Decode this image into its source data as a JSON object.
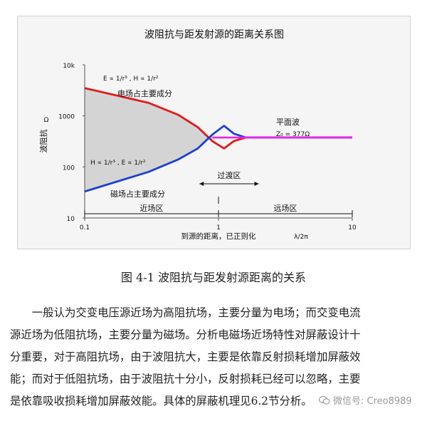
{
  "figure": {
    "title": "波阻抗与距发射源的距离关系图",
    "caption": "图  4-1  波阻抗与距发射源距离的关系"
  },
  "chart_data": {
    "type": "line",
    "title": "波阻抗与距发射源的距离关系图",
    "xlabel": "到源的距离，已正则化",
    "xlabel_unit": "λ/2π",
    "ylabel": "波阻抗",
    "ylabel_unit": "Ω",
    "xscale": "log",
    "yscale": "log",
    "xlim": [
      0.1,
      10
    ],
    "ylim": [
      10,
      10000
    ],
    "x_ticks": [
      "0.1",
      "1",
      "10"
    ],
    "y_ticks": [
      "10k",
      "1000",
      "100",
      "10"
    ],
    "series": [
      {
        "name": "电场占主要成分",
        "color": "#e41a1c",
        "x": [
          0.1,
          0.3,
          0.5,
          0.7,
          0.9,
          1.1,
          1.3,
          1.6,
          2,
          10
        ],
        "y": [
          3500,
          1800,
          1050,
          600,
          320,
          230,
          320,
          377,
          377,
          377
        ]
      },
      {
        "name": "磁场占主要成分",
        "color": "#1a3fd6",
        "x": [
          0.1,
          0.3,
          0.5,
          0.7,
          0.9,
          1.1,
          1.3,
          1.6,
          2,
          10
        ],
        "y": [
          33,
          80,
          140,
          230,
          430,
          640,
          450,
          377,
          377,
          377
        ]
      },
      {
        "name": "平面波",
        "color": "#ee22ee",
        "x": [
          0.9,
          10
        ],
        "y": [
          377,
          377
        ]
      }
    ],
    "annotations": {
      "upper_formula": "E ∝ 1/r³ ,  H ∝ 1/r²",
      "lower_formula": "H ∝ 1/r³ ,  E ∝ 1/r²",
      "upper_label": "电场占主要成分",
      "lower_label": "磁场占主要成分",
      "plane_wave": "平面波",
      "plane_wave_value": "Z₀ = 377Ω",
      "transition": "过渡区",
      "near_field": "近场区",
      "far_field": "远场区"
    }
  },
  "body": {
    "lines": [
      "　　一般认为交变电压源近场为高阻抗场，主要分量为电场；而交变电流",
      "源近场为低阻抗场，主要分量为磁场。分析电磁场近场特性对屏蔽设计十",
      "分重要，对于高阻抗场，由于波阻抗大，主要是依靠反射损耗增加屏蔽效",
      "能；而对于低阻抗场，由于波阻抗十分小，反射损耗已经可以忽略，主要",
      "是依靠吸收损耗增加屏蔽效能。具体的屏蔽机理见6.2节分析。"
    ]
  },
  "watermark": {
    "text": "微信号: Creo8989"
  }
}
